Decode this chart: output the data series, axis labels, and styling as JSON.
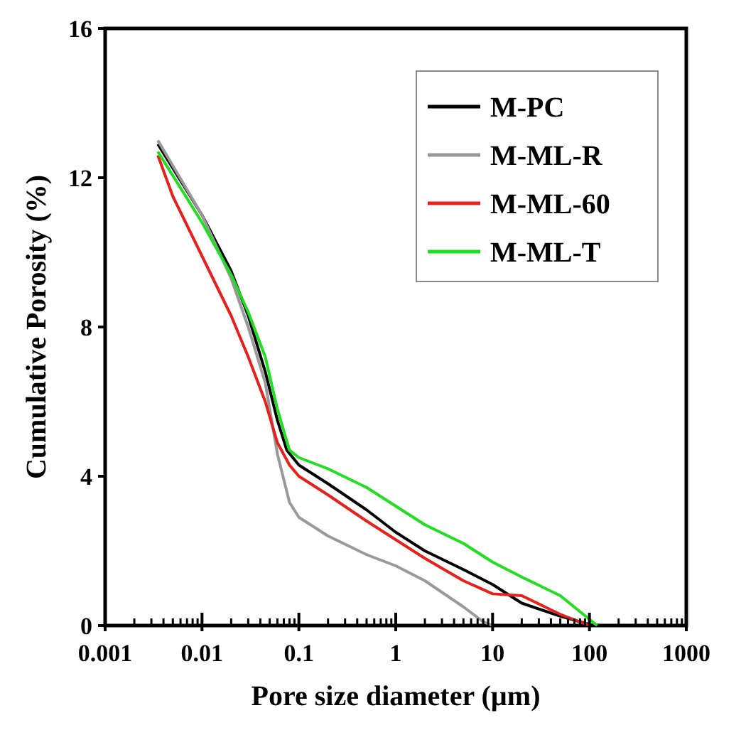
{
  "chart_data": {
    "type": "line",
    "xlabel": "Pore size diameter (µm)",
    "ylabel": "Cumulative Porosity (%)",
    "log": "x",
    "xlim": [
      0.001,
      1000
    ],
    "xticks": [
      0.001,
      0.01,
      0.1,
      1,
      10,
      100,
      1000
    ],
    "ylim": [
      0,
      16
    ],
    "yticks": [
      0,
      4,
      8,
      12,
      16
    ],
    "grid": false,
    "legend": "top right",
    "marker": "none",
    "line_style": "solid",
    "series": [
      {
        "name": "M-PC",
        "color": "#000000",
        "x": [
          0.0035,
          0.01,
          0.02,
          0.03,
          0.045,
          0.06,
          0.075,
          0.1,
          0.2,
          0.5,
          1,
          2,
          5,
          10,
          20,
          50,
          110
        ],
        "values": [
          12.9,
          11.0,
          9.5,
          8.3,
          6.8,
          5.5,
          4.7,
          4.3,
          3.8,
          3.1,
          2.5,
          2.0,
          1.5,
          1.1,
          0.6,
          0.25,
          0
        ]
      },
      {
        "name": "M-ML-R",
        "color": "#999999",
        "x": [
          0.0035,
          0.01,
          0.02,
          0.03,
          0.045,
          0.06,
          0.08,
          0.1,
          0.2,
          0.5,
          1,
          2,
          5,
          8,
          10
        ],
        "values": [
          13.0,
          11.0,
          9.3,
          8.0,
          6.5,
          4.6,
          3.3,
          2.9,
          2.4,
          1.9,
          1.6,
          1.2,
          0.5,
          0.1,
          0
        ]
      },
      {
        "name": "M-ML-60",
        "color": "#e8201c",
        "x": [
          0.0035,
          0.005,
          0.01,
          0.02,
          0.03,
          0.045,
          0.06,
          0.08,
          0.1,
          0.2,
          0.5,
          1,
          2,
          5,
          10,
          20,
          50,
          100
        ],
        "values": [
          12.6,
          11.5,
          9.9,
          8.3,
          7.2,
          6.0,
          4.9,
          4.3,
          4.0,
          3.5,
          2.8,
          2.3,
          1.8,
          1.2,
          0.85,
          0.8,
          0.3,
          0
        ]
      },
      {
        "name": "M-ML-T",
        "color": "#22dd22",
        "x": [
          0.0035,
          0.01,
          0.02,
          0.03,
          0.045,
          0.06,
          0.08,
          0.1,
          0.2,
          0.5,
          1,
          2,
          5,
          10,
          20,
          50,
          120
        ],
        "values": [
          12.7,
          10.8,
          9.4,
          8.4,
          7.2,
          5.8,
          4.7,
          4.5,
          4.2,
          3.7,
          3.2,
          2.7,
          2.2,
          1.7,
          1.3,
          0.8,
          0
        ]
      }
    ]
  }
}
